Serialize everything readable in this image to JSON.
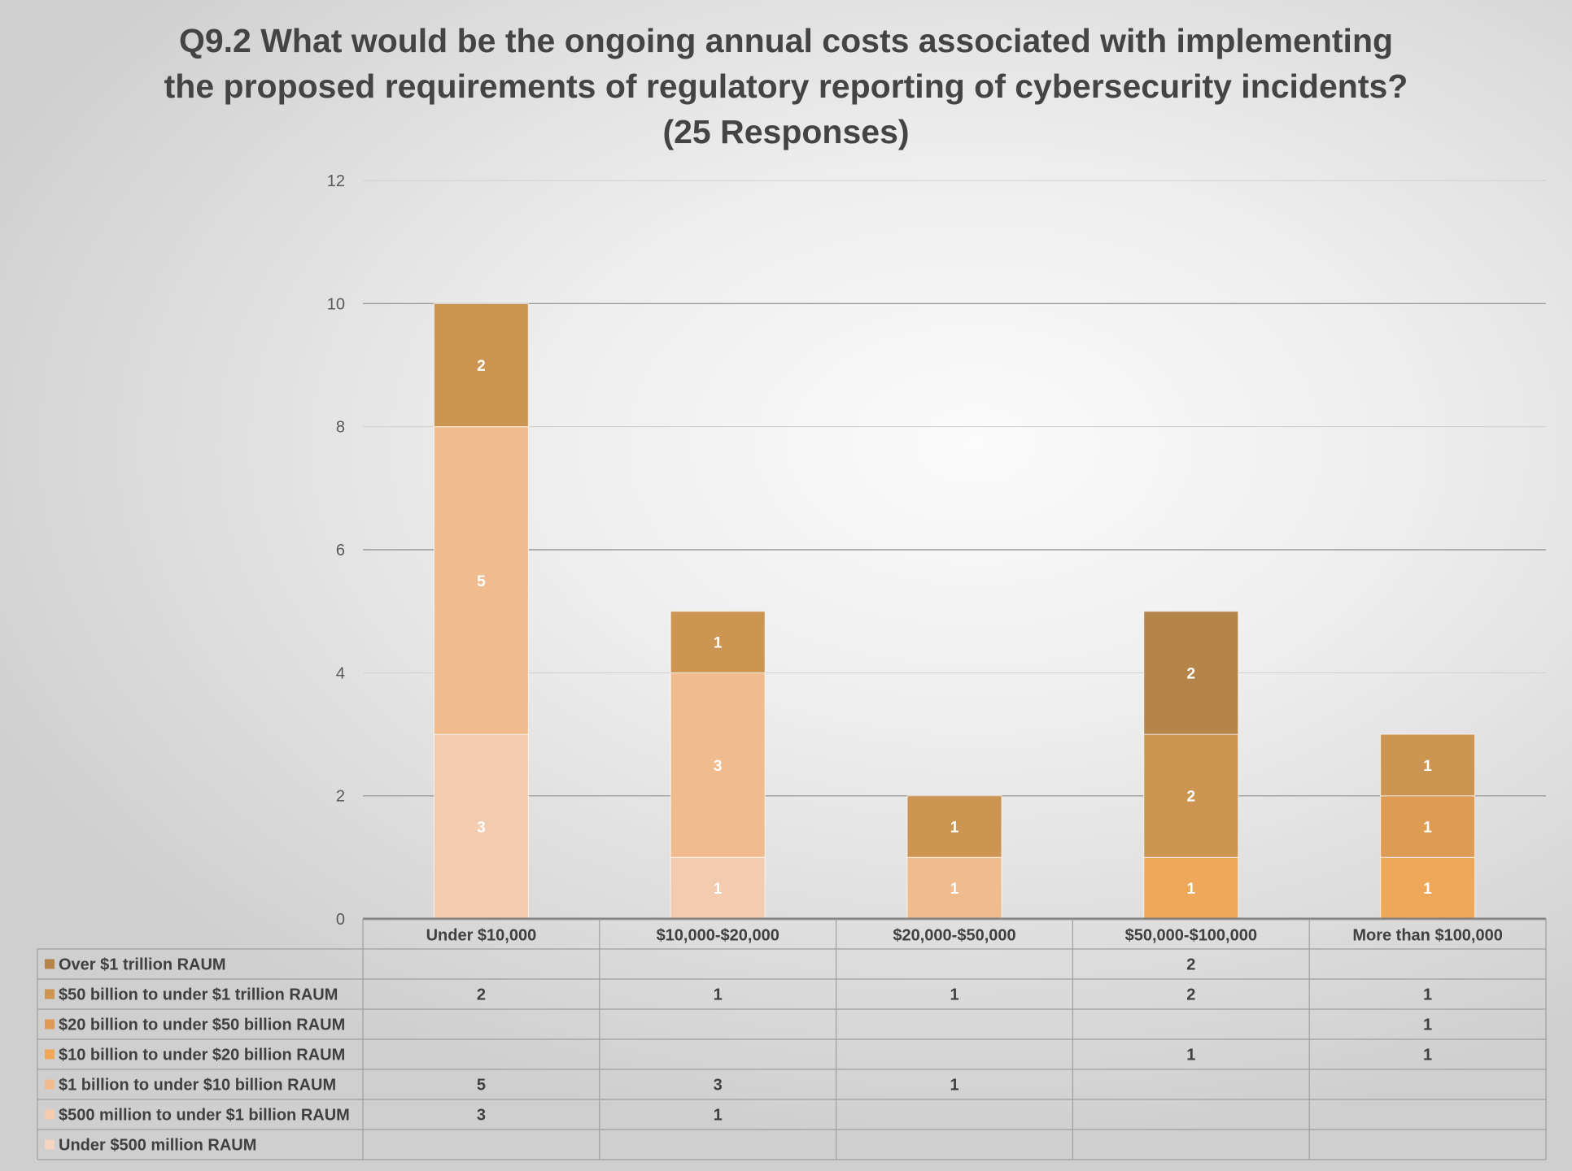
{
  "chart_data": {
    "type": "bar",
    "stacked": true,
    "title_lines": [
      "Q9.2 What would be the ongoing annual costs associated with implementing",
      "the proposed requirements of regulatory reporting of cybersecurity incidents?",
      "(25 Responses)"
    ],
    "categories": [
      "Under $10,000",
      "$10,000-$20,000",
      "$20,000-$50,000",
      "$50,000-$100,000",
      "More than $100,000"
    ],
    "ylim": [
      0,
      12
    ],
    "yticks": [
      "0",
      "2",
      "4",
      "6",
      "8",
      "10",
      "12"
    ],
    "grid": true,
    "legend": "data-table-below",
    "series": [
      {
        "name": "Under $500 million RAUM",
        "color": "#F6D5C0",
        "values": [
          null,
          null,
          null,
          null,
          null
        ]
      },
      {
        "name": "$500 million to under $1 billion RAUM",
        "color": "#F3CBAE",
        "values": [
          3,
          1,
          null,
          null,
          null
        ]
      },
      {
        "name": "$1 billion to under $10 billion RAUM",
        "color": "#F0BC8E",
        "values": [
          5,
          3,
          1,
          null,
          null
        ]
      },
      {
        "name": "$10 billion to under $20 billion RAUM",
        "color": "#EFA85A",
        "values": [
          null,
          null,
          null,
          1,
          1
        ]
      },
      {
        "name": "$20 billion to under $50 billion RAUM",
        "color": "#DE9B54",
        "values": [
          null,
          null,
          null,
          null,
          1
        ]
      },
      {
        "name": "$50 billion to under $1 trillion RAUM",
        "color": "#CC9552",
        "values": [
          2,
          1,
          1,
          2,
          1
        ]
      },
      {
        "name": "Over $1 trillion RAUM",
        "color": "#B58448",
        "values": [
          null,
          null,
          null,
          2,
          null
        ]
      }
    ]
  }
}
